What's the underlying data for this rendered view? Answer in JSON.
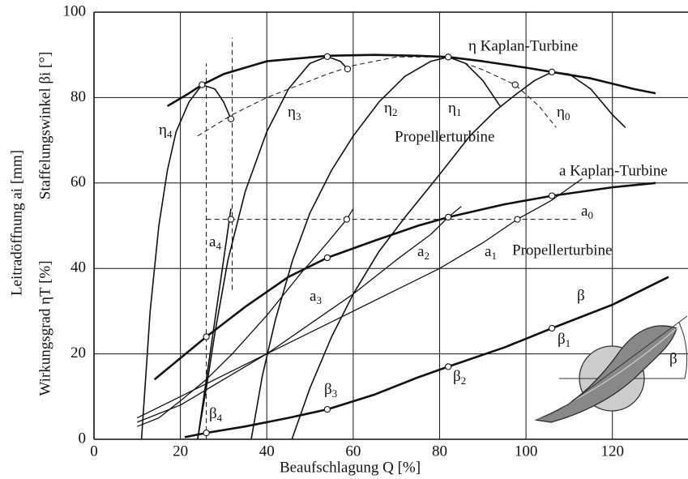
{
  "chart_data": {
    "type": "line",
    "xlabel": "Beaufschlagung Q [%]",
    "ylabels": [
      "Leitradöffnung ai [mm]",
      "Wirkungsgrad ηT [%]",
      "Staffelungswinkel βi [°]"
    ],
    "xlim": [
      0,
      137.5
    ],
    "ylim": [
      0,
      100
    ],
    "xticks": [
      0,
      20,
      40,
      60,
      80,
      100,
      120
    ],
    "yticks": [
      0,
      20,
      40,
      60,
      80,
      100
    ],
    "grid": true,
    "color": "#111111",
    "series": [
      {
        "name": "η Kaplan-Turbine",
        "width": 2.6,
        "dash": false,
        "x": [
          17,
          22,
          25,
          30,
          40,
          54,
          65,
          75,
          82,
          90,
          100,
          106,
          115,
          125,
          130
        ],
        "values": [
          78,
          81,
          83,
          85.5,
          88.5,
          89.8,
          90,
          89.8,
          89.5,
          88.5,
          87,
          86,
          84.5,
          82,
          81
        ]
      },
      {
        "name": "η4",
        "width": 1.6,
        "dash": false,
        "x": [
          11,
          12,
          13,
          15,
          17,
          19,
          22,
          25,
          28,
          30,
          31.7
        ],
        "values": [
          0,
          15,
          30,
          50,
          63,
          72,
          79,
          83,
          82,
          79,
          75
        ]
      },
      {
        "name": "η3",
        "width": 1.6,
        "dash": false,
        "x": [
          24,
          26,
          28,
          31,
          35,
          40,
          45,
          50,
          54,
          57,
          58.7
        ],
        "values": [
          0,
          12,
          25,
          42,
          58,
          72,
          82,
          88,
          89.6,
          88.5,
          86.7
        ]
      },
      {
        "name": "η2",
        "width": 1.6,
        "dash": false,
        "x": [
          36.4,
          39,
          42,
          46,
          50,
          55,
          60,
          66,
          72,
          78,
          82,
          86,
          90,
          94
        ],
        "values": [
          0,
          15,
          28,
          42,
          53,
          63,
          71,
          79,
          85,
          88.5,
          89.5,
          88,
          84,
          78
        ]
      },
      {
        "name": "η1",
        "width": 1.6,
        "dash": false,
        "x": [
          45.8,
          50,
          55,
          60,
          66,
          72,
          80,
          87,
          93,
          98,
          102,
          106,
          110,
          115,
          120,
          123
        ],
        "values": [
          0,
          12,
          24,
          34,
          44,
          52,
          62,
          71,
          77,
          81,
          84,
          86,
          85.5,
          82,
          76,
          73
        ]
      },
      {
        "name": "η0",
        "width": 1,
        "dash": true,
        "x": [
          24,
          32,
          40,
          54,
          60,
          70,
          82,
          90,
          97.5,
          103,
          107
        ],
        "values": [
          71,
          76,
          80,
          85.5,
          87.5,
          89.5,
          89.5,
          86.5,
          83,
          78,
          73
        ]
      },
      {
        "name": "a Kaplan-Turbine",
        "width": 2.6,
        "dash": false,
        "x": [
          14,
          20,
          26,
          35,
          45,
          54,
          65,
          75,
          82,
          95,
          106,
          120,
          130
        ],
        "values": [
          14,
          19,
          24,
          31,
          38,
          42.5,
          46.5,
          50,
          52,
          55,
          57,
          59,
          60
        ]
      },
      {
        "name": "a4",
        "width": 1.6,
        "dash": false,
        "x": [
          24,
          26,
          28,
          30,
          31.7
        ],
        "values": [
          0,
          14,
          28,
          42,
          54
        ]
      },
      {
        "name": "a3",
        "width": 1.3,
        "dash": false,
        "x": [
          10,
          15,
          20,
          26,
          32,
          40,
          48,
          54,
          58.5,
          60
        ],
        "values": [
          3,
          5,
          9,
          14,
          20,
          29,
          39,
          46,
          51.5,
          54
        ]
      },
      {
        "name": "a2",
        "width": 1.3,
        "dash": false,
        "x": [
          10,
          20,
          30,
          40,
          50,
          60,
          70,
          78,
          82,
          85
        ],
        "values": [
          4,
          8,
          14,
          20,
          27,
          34,
          42,
          48,
          52,
          54.5
        ]
      },
      {
        "name": "a1",
        "width": 1.3,
        "dash": false,
        "x": [
          10,
          20,
          30,
          40,
          50,
          60,
          70,
          80,
          90,
          98,
          106,
          113
        ],
        "values": [
          5,
          10,
          15,
          20,
          25,
          30,
          35,
          40,
          46,
          51.5,
          56,
          61
        ]
      },
      {
        "name": "a0",
        "width": 1,
        "dash": true,
        "x": [
          26,
          112
        ],
        "values": [
          51.5,
          51.5
        ]
      },
      {
        "name": "β",
        "width": 2.6,
        "dash": false,
        "x": [
          21,
          26,
          35,
          45,
          54,
          65,
          75,
          82,
          95,
          106,
          120,
          133
        ],
        "values": [
          0.5,
          1.5,
          3,
          5,
          7,
          10.5,
          14.5,
          17,
          21.5,
          26,
          31.5,
          38
        ]
      },
      {
        "width": 1,
        "dash": true,
        "x": [
          26,
          26
        ],
        "values": [
          0,
          88
        ]
      },
      {
        "width": 1,
        "dash": true,
        "x": [
          32,
          32
        ],
        "values": [
          35,
          94
        ]
      }
    ],
    "points": {
      "x": [
        25,
        31.7,
        54,
        58.7,
        82,
        97.5,
        106,
        31.7,
        58.5,
        82,
        98,
        106,
        54,
        26
      ],
      "values": [
        83,
        75,
        89.6,
        86.7,
        89.5,
        83,
        86,
        51.5,
        51.5,
        52,
        51.5,
        57,
        42.5,
        24
      ]
    },
    "beta_points": {
      "labels": [
        "β4",
        "β3",
        "β2",
        "β1"
      ],
      "x": [
        26,
        54,
        82,
        106
      ],
      "values": [
        1.5,
        7,
        17,
        26
      ]
    },
    "annotations": [
      "Propellerturbine",
      "Propellerturbine"
    ],
    "illustration_label": "β"
  }
}
